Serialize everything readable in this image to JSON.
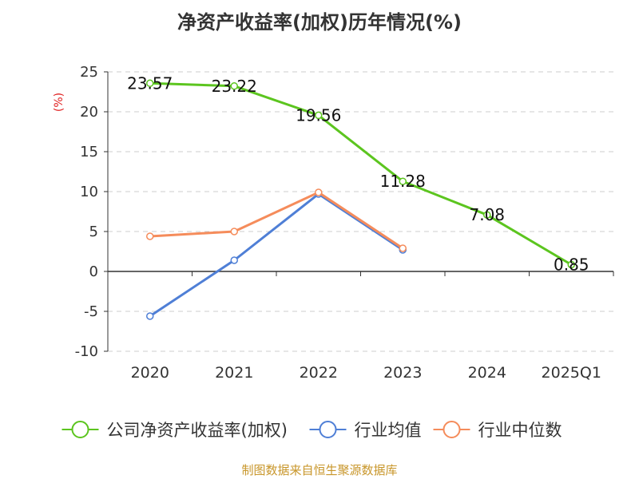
{
  "chart_data": {
    "type": "line",
    "title": "净资产收益率(加权)历年情况(%)",
    "ylabel": "(%)",
    "categories": [
      "2020",
      "2021",
      "2022",
      "2023",
      "2024",
      "2025Q1"
    ],
    "ylim": [
      -10,
      25
    ],
    "yticks": [
      "25",
      "20",
      "15",
      "10",
      "5",
      "0",
      "-5",
      "-10"
    ],
    "grid": true,
    "legend_position": "bottom",
    "series": [
      {
        "name": "公司净资产收益率(加权)",
        "color": "#5cc51f",
        "values": [
          23.57,
          23.22,
          19.56,
          11.28,
          7.08,
          0.85
        ],
        "labels": [
          "23.57",
          "23.22",
          "19.56",
          "11.28",
          "7.08",
          "0.85"
        ]
      },
      {
        "name": "行业均值",
        "color": "#4f7fd6",
        "values": [
          -5.6,
          1.4,
          9.7,
          2.7,
          null,
          null
        ]
      },
      {
        "name": "行业中位数",
        "color": "#f58c5b",
        "values": [
          4.4,
          5.0,
          9.9,
          2.9,
          null,
          null
        ]
      }
    ]
  },
  "footer": {
    "source": "制图数据来自恒生聚源数据库"
  }
}
